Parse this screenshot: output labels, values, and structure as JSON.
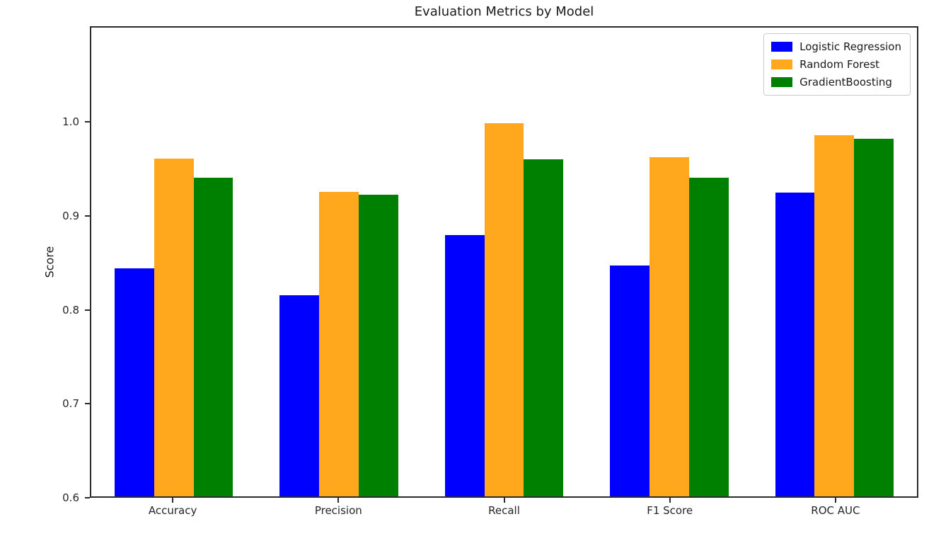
{
  "chart_data": {
    "type": "bar",
    "title": "Evaluation Metrics by Model",
    "xlabel": "",
    "ylabel": "Score",
    "categories": [
      "Accuracy",
      "Precision",
      "Recall",
      "F1 Score",
      "ROC AUC"
    ],
    "series": [
      {
        "name": "Logistic Regression",
        "color": "#0000ff",
        "values": [
          0.844,
          0.815,
          0.88,
          0.847,
          0.925
        ]
      },
      {
        "name": "Random Forest",
        "color": "#ffa81e",
        "values": [
          0.962,
          0.926,
          1.0,
          0.963,
          0.987
        ]
      },
      {
        "name": "GradientBoosting",
        "color": "#008000",
        "values": [
          0.941,
          0.923,
          0.961,
          0.941,
          0.983
        ]
      }
    ],
    "ylim": [
      0.6,
      1.102
    ],
    "yticks": [
      "1.0",
      "0.9",
      "0.8",
      "0.7",
      "0.6"
    ],
    "ytick_values": [
      1.0,
      0.9,
      0.8,
      0.7,
      0.6
    ],
    "grid": false,
    "legend_position": "upper right",
    "axis_color": "#2b2b2b",
    "background_color": "#ffffff"
  }
}
